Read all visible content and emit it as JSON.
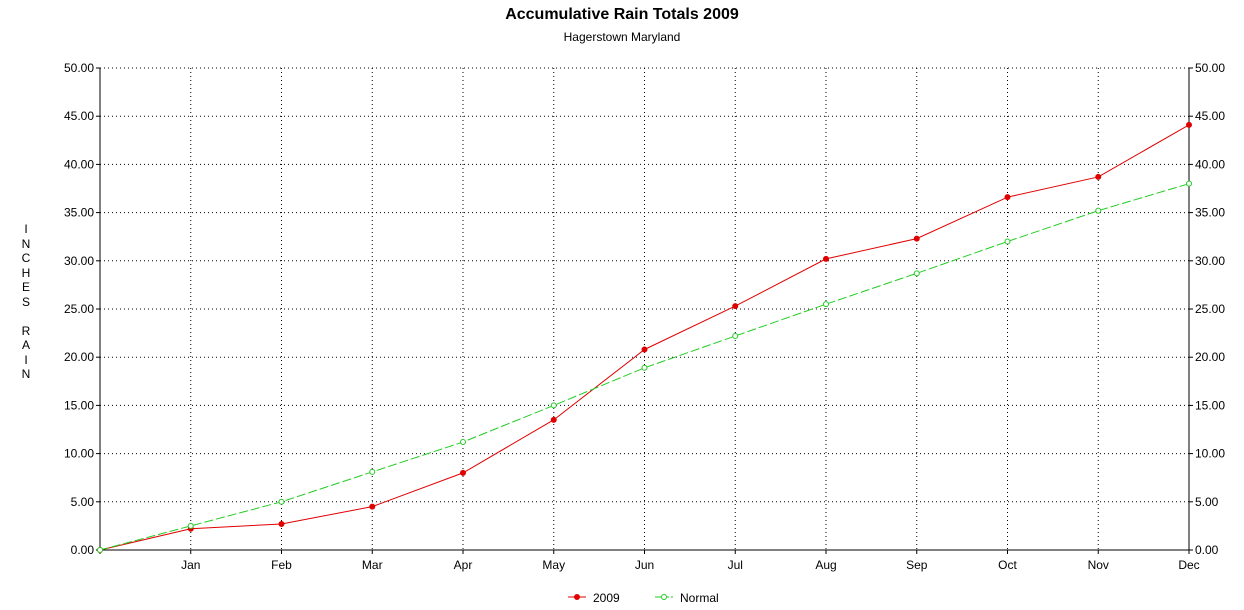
{
  "chart_data": {
    "type": "line",
    "title": "Accumulative Rain Totals 2009",
    "subtitle": "Hagerstown Maryland",
    "ylabel": "INCHES RAIN",
    "xlabel": "",
    "categories": [
      "",
      "Jan",
      "Feb",
      "Mar",
      "Apr",
      "May",
      "Jun",
      "Jul",
      "Aug",
      "Sep",
      "Oct",
      "Nov",
      "Dec"
    ],
    "yticks": [
      "0.00",
      "5.00",
      "10.00",
      "15.00",
      "20.00",
      "25.00",
      "30.00",
      "35.00",
      "40.00",
      "45.00",
      "50.00"
    ],
    "ylim": [
      0,
      50
    ],
    "grid": true,
    "legend_position": "bottom-center",
    "series": [
      {
        "name": "2009",
        "color": "#e00000",
        "dash": "solid",
        "values": [
          0.0,
          2.2,
          2.7,
          4.5,
          8.0,
          13.5,
          20.8,
          25.3,
          30.2,
          32.3,
          36.6,
          38.7,
          44.1
        ]
      },
      {
        "name": "Normal",
        "color": "#22cc22",
        "dash": "dashed",
        "values": [
          0.0,
          2.5,
          5.0,
          8.1,
          11.2,
          15.0,
          18.9,
          22.2,
          25.5,
          28.7,
          32.0,
          35.2,
          38.0
        ]
      }
    ]
  }
}
